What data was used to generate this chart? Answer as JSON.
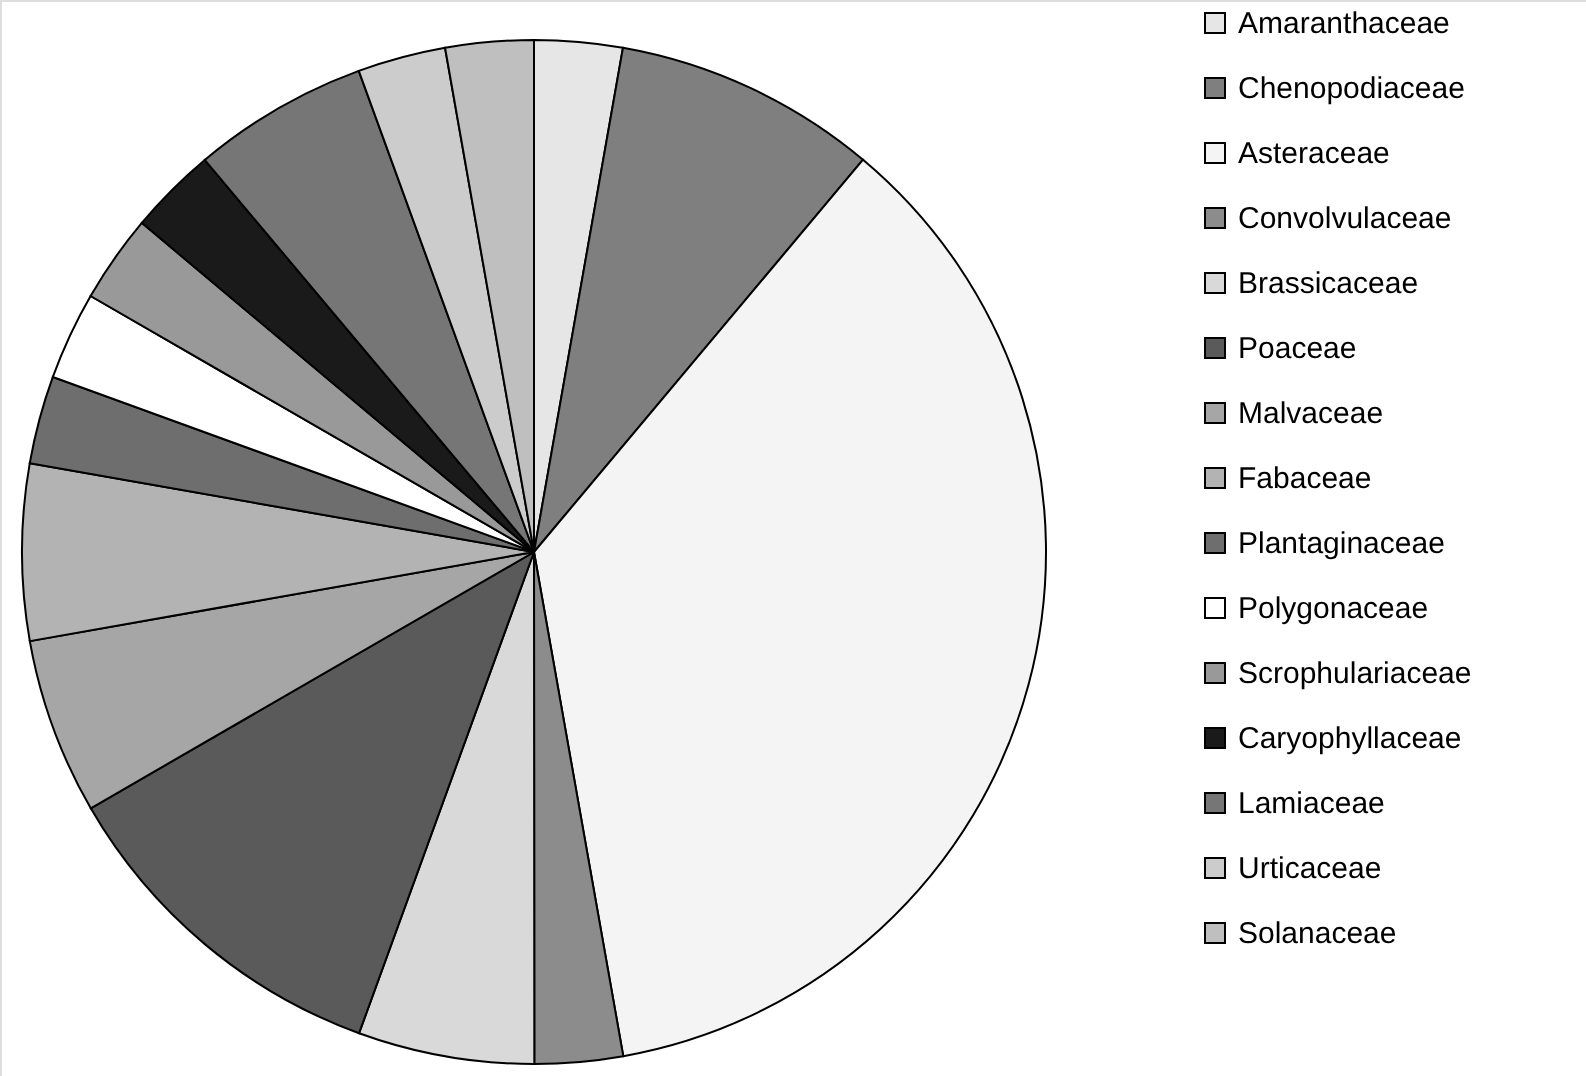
{
  "chart_data": {
    "type": "pie",
    "categories": [
      "Amaranthaceae",
      "Chenopodiaceae",
      "Asteraceae",
      "Convolvulaceae",
      "Brassicaceae",
      "Poaceae",
      "Malvaceae",
      "Fabaceae",
      "Plantaginaceae",
      "Polygonaceae",
      "Scrophulariaceae",
      "Caryophyllaceae",
      "Lamiaceae",
      "Urticaceae",
      "Solanaceae"
    ],
    "values": [
      2.78,
      8.33,
      36.11,
      2.78,
      5.56,
      11.11,
      5.56,
      5.56,
      2.78,
      2.78,
      2.78,
      2.77,
      5.56,
      2.78,
      2.78
    ],
    "colors": [
      "#e6e6e6",
      "#7f7f7f",
      "#f4f4f4",
      "#8c8c8c",
      "#d9d9d9",
      "#5a5a5a",
      "#a6a6a6",
      "#b3b3b3",
      "#6e6e6e",
      "#ffffff",
      "#999999",
      "#1a1a1a",
      "#767676",
      "#cccccc",
      "#bfbfbf"
    ],
    "legend": "right"
  }
}
